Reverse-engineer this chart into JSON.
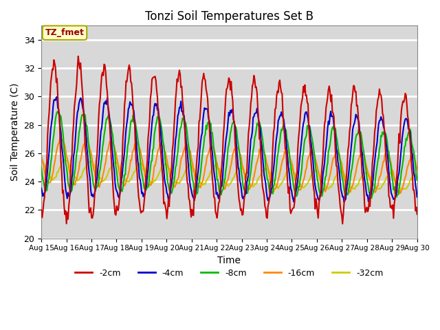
{
  "title": "Tonzi Soil Temperatures Set B",
  "xlabel": "Time",
  "ylabel": "Soil Temperature (C)",
  "ylim": [
    20,
    35
  ],
  "background_color": "#ffffff",
  "plot_bg_color": "#d8d8d8",
  "annotation_text": "TZ_fmet",
  "annotation_bg": "#ffffcc",
  "annotation_border": "#aaaa00",
  "series": {
    "-2cm": {
      "color": "#cc0000",
      "lw": 1.5
    },
    "-4cm": {
      "color": "#0000cc",
      "lw": 1.5
    },
    "-8cm": {
      "color": "#00bb00",
      "lw": 1.5
    },
    "-16cm": {
      "color": "#ff8800",
      "lw": 1.5
    },
    "-32cm": {
      "color": "#cccc00",
      "lw": 1.5
    }
  },
  "tick_labels": [
    "Aug 15",
    "Aug 16",
    "Aug 17",
    "Aug 18",
    "Aug 19",
    "Aug 20",
    "Aug 21",
    "Aug 22",
    "Aug 23",
    "Aug 24",
    "Aug 25",
    "Aug 26",
    "Aug 27",
    "Aug 28",
    "Aug 29",
    "Aug 30"
  ],
  "yticks": [
    20,
    22,
    24,
    26,
    28,
    30,
    32,
    34
  ],
  "n_points": 480
}
